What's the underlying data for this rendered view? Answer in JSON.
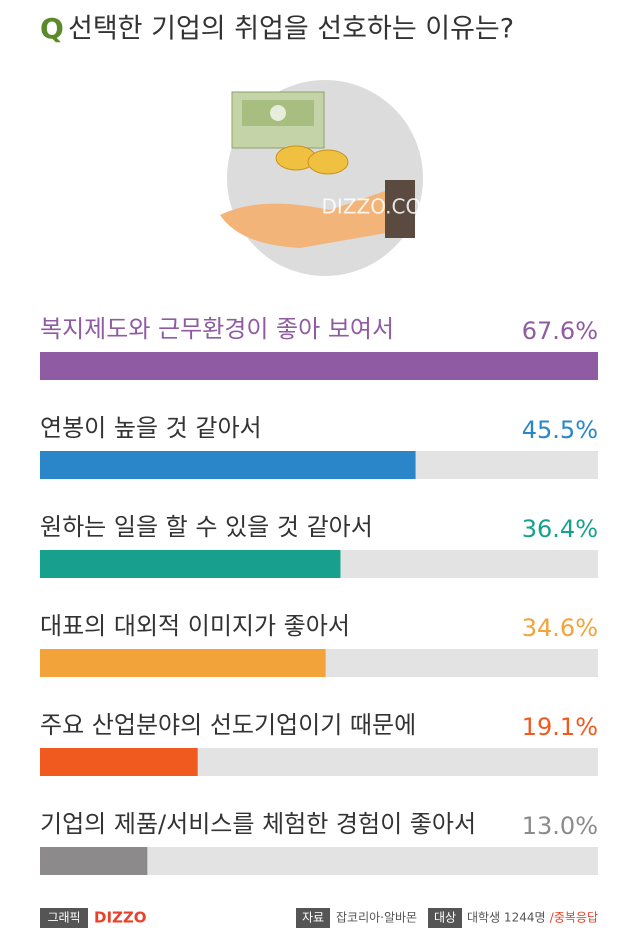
{
  "chart_data": {
    "type": "hbar",
    "title_prefix": "Q",
    "title": "선택한 기업의 취업을 선호하는 이유는?",
    "watermark": "DIZZO.COM",
    "categories": [
      "복지제도와 근무환경이 좋아 보여서",
      "연봉이 높을 것 같아서",
      "원하는 일을 할 수 있을 것 같아서",
      "대표의 대외적 이미지가 좋아서",
      "주요 산업분야의 선도기업이기 때문에",
      "기업의 제품/서비스를 체험한 경험이 좋아서"
    ],
    "values": [
      67.6,
      45.5,
      36.4,
      34.6,
      19.1,
      13.0
    ],
    "value_labels": [
      "67.6%",
      "45.5%",
      "36.4%",
      "34.6%",
      "19.1%",
      "13.0%"
    ],
    "colors": [
      "#8f5ca3",
      "#2a86c8",
      "#18a08f",
      "#f2a33a",
      "#f05a1e",
      "#8c8a8a"
    ],
    "track_color": "#e3e3e3",
    "xlim": [
      0,
      67.6
    ],
    "footer": {
      "graphic_label": "그래픽",
      "graphic_by": "DIZZO",
      "source_label": "자료",
      "source": "잡코리아·알바몬",
      "target_label": "대상",
      "target": "대학생 1244명",
      "note": "/중복응답"
    }
  }
}
